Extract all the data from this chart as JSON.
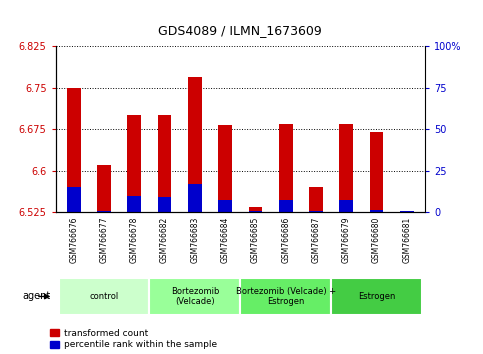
{
  "title": "GDS4089 / ILMN_1673609",
  "samples": [
    "GSM766676",
    "GSM766677",
    "GSM766678",
    "GSM766682",
    "GSM766683",
    "GSM766684",
    "GSM766685",
    "GSM766686",
    "GSM766687",
    "GSM766679",
    "GSM766680",
    "GSM766681"
  ],
  "red_values": [
    6.75,
    6.61,
    6.7,
    6.7,
    6.77,
    6.683,
    6.535,
    6.685,
    6.57,
    6.685,
    6.67,
    6.527
  ],
  "blue_values": [
    6.571,
    6.527,
    6.555,
    6.553,
    6.576,
    6.548,
    6.527,
    6.548,
    6.528,
    6.548,
    6.529,
    6.527
  ],
  "ymin": 6.525,
  "ymax": 6.825,
  "yticks": [
    6.525,
    6.6,
    6.675,
    6.75,
    6.825
  ],
  "ytick_labels": [
    "6.525",
    "6.6",
    "6.675",
    "6.75",
    "6.825"
  ],
  "right_yticks": [
    0,
    25,
    50,
    75,
    100
  ],
  "right_ytick_labels": [
    "0",
    "25",
    "50",
    "75",
    "100%"
  ],
  "groups": [
    {
      "label": "control",
      "start": 0,
      "end": 3,
      "color": "#ccffcc"
    },
    {
      "label": "Bortezomib\n(Velcade)",
      "start": 3,
      "end": 6,
      "color": "#99ff99"
    },
    {
      "label": "Bortezomib (Velcade) +\nEstrogen",
      "start": 6,
      "end": 9,
      "color": "#66ee66"
    },
    {
      "label": "Estrogen",
      "start": 9,
      "end": 12,
      "color": "#44cc44"
    }
  ],
  "legend_red": "transformed count",
  "legend_blue": "percentile rank within the sample",
  "agent_label": "agent",
  "bar_width": 0.45,
  "red_color": "#cc0000",
  "blue_color": "#0000cc",
  "tick_bg": "#d8d8d8",
  "plot_bg": "#ffffff"
}
